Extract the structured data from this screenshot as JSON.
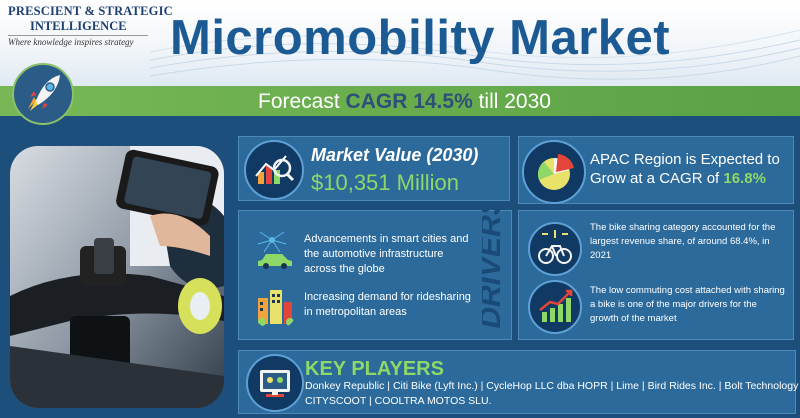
{
  "logo": {
    "line1": "PRESCIENT & STRATEGIC",
    "line2": "INTELLIGENCE",
    "tagline": "Where knowledge inspires strategy"
  },
  "header": {
    "title": "Micromobility Market"
  },
  "forecast": {
    "prefix": "Forecast ",
    "highlight": "CAGR 14.5%",
    "suffix": " till 2030"
  },
  "market_value": {
    "label": "Market Value (2030)",
    "value": "$10,351 Million"
  },
  "apac": {
    "text": "APAC Region is Expected to Grow at a CAGR of ",
    "highlight": "16.8%"
  },
  "drivers": {
    "label": "DRIVERS",
    "item1": "Advancements in smart cities and the automotive infrastructure across the globe",
    "item2": "Increasing demand for ridesharing in metropolitan areas"
  },
  "facts": {
    "fact1": "The bike sharing category accounted for the largest revenue share, of around 68.4%, in 2021",
    "fact2": "The low commuting cost attached with sharing a bike is one of the major drivers for the growth of the market"
  },
  "key_players": {
    "title": "KEY PLAYERS",
    "line1": "Donkey Republic | Citi Bike (Lyft Inc.) | CycleHop LLC dba HOPR | Lime | Bird Rides Inc. | Bolt Technology OÜ |",
    "line2": "CITYSCOOT | COOLTRA MOTOS SLU."
  },
  "colors": {
    "accent_green": "#8ed867",
    "title_blue": "#1c5a93",
    "panel_blue": "#2c6a9c"
  }
}
